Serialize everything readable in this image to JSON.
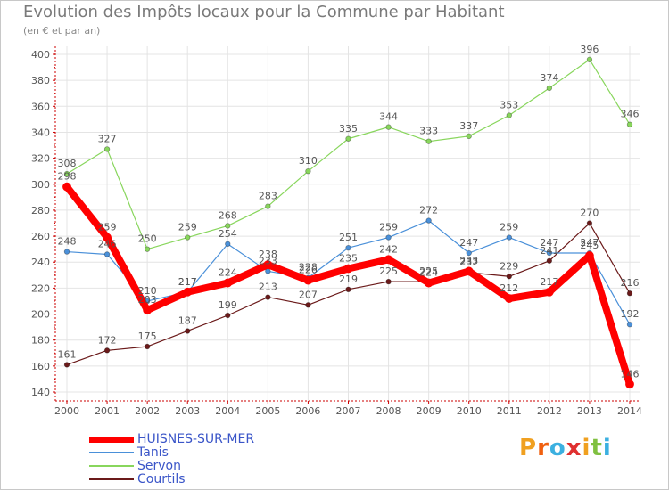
{
  "title": "Evolution des Impôts locaux pour la Commune par Habitant",
  "subtitle": "(en € et par an)",
  "logo_text": "Proxiti",
  "chart_data": {
    "type": "line",
    "title": "Evolution des Impôts locaux pour la Commune par Habitant",
    "ylabel": "(en € et par an)",
    "xlabel": "",
    "ylim": [
      140,
      400
    ],
    "yticks": [
      140,
      160,
      180,
      200,
      220,
      240,
      260,
      280,
      300,
      320,
      340,
      360,
      380,
      400
    ],
    "categories": [
      "2000",
      "2001",
      "2002",
      "2003",
      "2004",
      "2005",
      "2006",
      "2007",
      "2008",
      "2009",
      "2010",
      "2011",
      "2012",
      "2013",
      "2014"
    ],
    "grid": true,
    "legend_position": "bottom-left",
    "series": [
      {
        "name": "Courtils",
        "color": "#6b1a1a",
        "width": 1.2,
        "values": [
          161,
          172,
          175,
          187,
          199,
          213,
          207,
          219,
          225,
          225,
          232,
          229,
          241,
          270,
          216
        ]
      },
      {
        "name": "Servon",
        "color": "#88d65c",
        "width": 1.2,
        "values": [
          308,
          327,
          250,
          259,
          268,
          283,
          310,
          335,
          344,
          333,
          337,
          353,
          374,
          396,
          346
        ]
      },
      {
        "name": "Tanis",
        "color": "#4a90d9",
        "width": 1.2,
        "values": [
          248,
          246,
          210,
          217,
          254,
          233,
          228,
          251,
          259,
          272,
          247,
          259,
          247,
          247,
          192
        ]
      },
      {
        "name": "HUISNES-SUR-MER",
        "color": "#ff0000",
        "width": 8,
        "values": [
          298,
          259,
          203,
          217,
          224,
          238,
          226,
          235,
          242,
          224,
          233,
          212,
          217,
          245,
          146
        ]
      }
    ],
    "point_labels": {
      "Courtils": [
        "161",
        "172",
        "175",
        "187",
        "199",
        "213",
        "207",
        "219",
        "225",
        "225",
        "232",
        "229",
        "241",
        "270",
        "216"
      ],
      "Servon": [
        "308",
        "327",
        "250",
        "259",
        "268",
        "283",
        "310",
        "335",
        "344",
        "333",
        "337",
        "353",
        "374",
        "396",
        "346"
      ],
      "Tanis": [
        "248",
        "246",
        "210",
        "217",
        "254",
        "233",
        "228",
        "251",
        "259",
        "272",
        "247",
        "259",
        "247",
        "247",
        "192"
      ],
      "HUISNES-SUR-MER": [
        "298",
        "259",
        "203",
        "217",
        "224",
        "238",
        "226",
        "235",
        "242",
        "224",
        "233",
        "212",
        "217",
        "245",
        "146"
      ]
    },
    "legend": [
      "HUISNES-SUR-MER",
      "Tanis",
      "Servon",
      "Courtils"
    ]
  }
}
